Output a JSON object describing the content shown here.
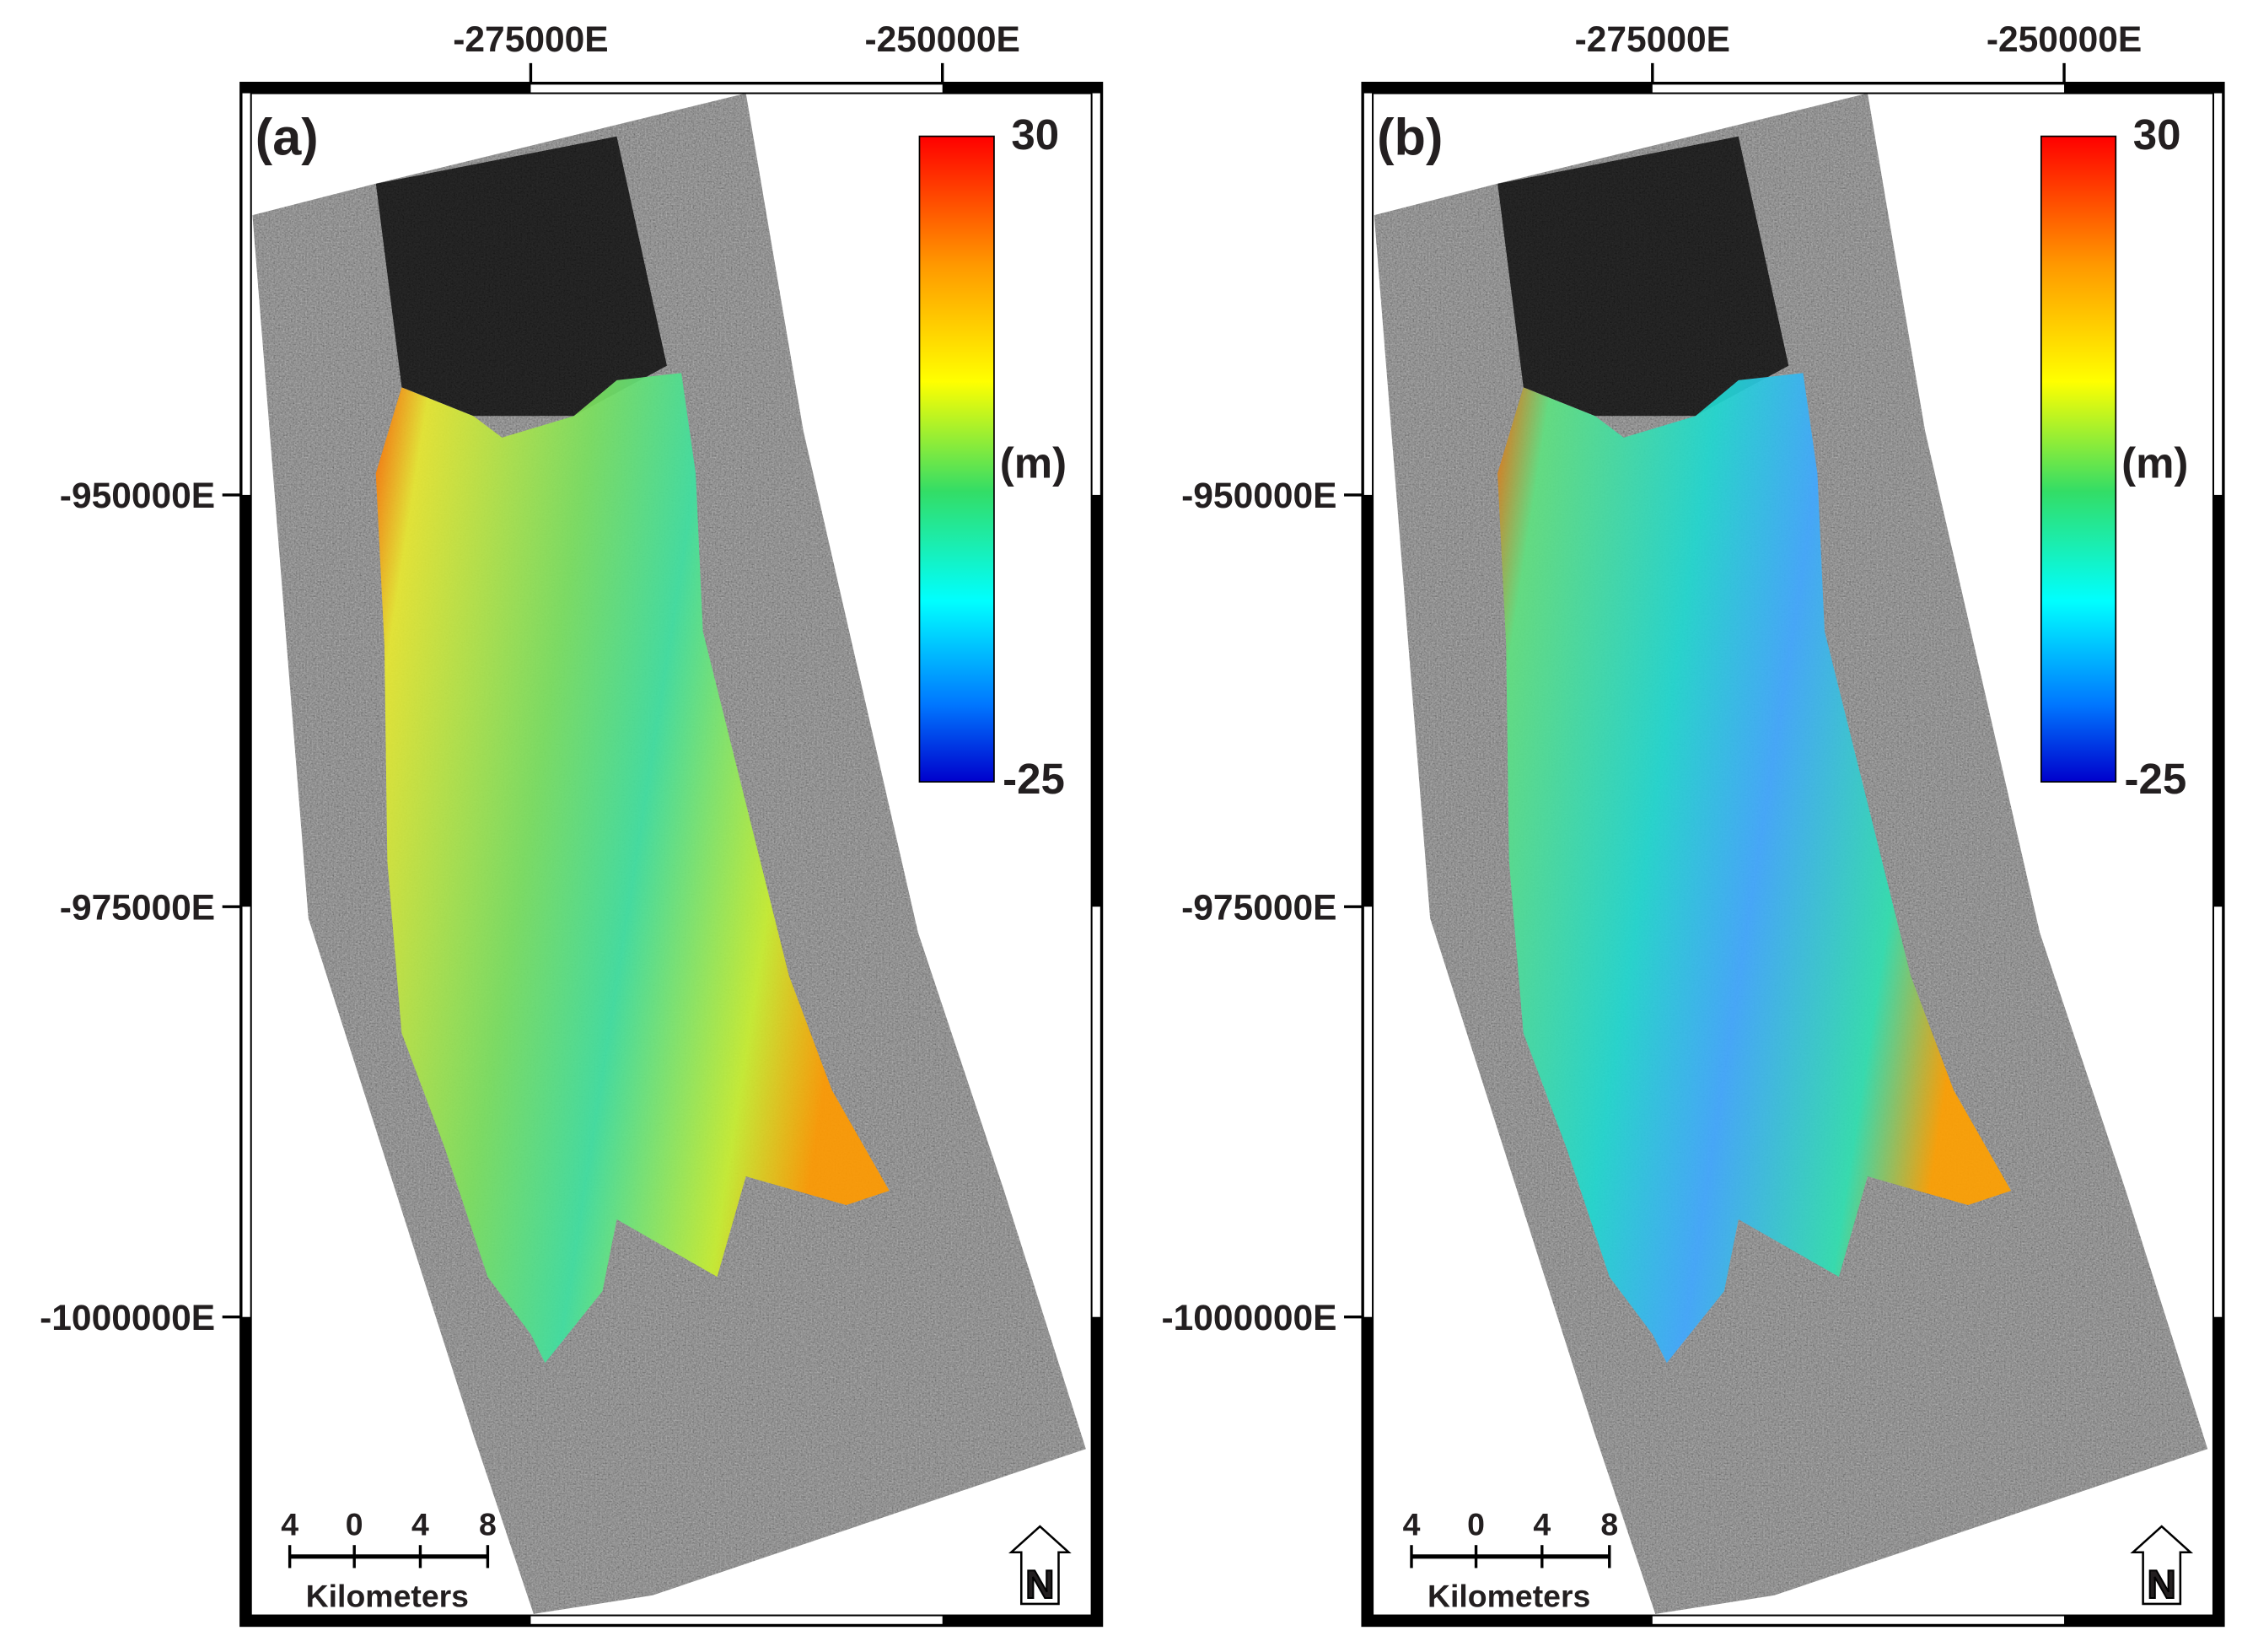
{
  "panels": [
    {
      "label": "(a)",
      "x_ticks": [
        "-275000E",
        "-250000E"
      ],
      "y_ticks": [
        "-950000E",
        "-975000E",
        "-1000000E"
      ],
      "colorbar": {
        "max": "30",
        "unit": "(m)",
        "min": "-25"
      },
      "scale_bar": {
        "ticks": [
          "4",
          "0",
          "4",
          "8"
        ],
        "unit": "Kilometers"
      },
      "north": "N"
    },
    {
      "label": "(b)",
      "x_ticks": [
        "-275000E",
        "-250000E"
      ],
      "y_ticks": [
        "-950000E",
        "-975000E",
        "-1000000E"
      ],
      "colorbar": {
        "max": "30",
        "unit": "(m)",
        "min": "-25"
      },
      "scale_bar": {
        "ticks": [
          "4",
          "0",
          "4",
          "8"
        ],
        "unit": "Kilometers"
      },
      "north": "N"
    }
  ]
}
